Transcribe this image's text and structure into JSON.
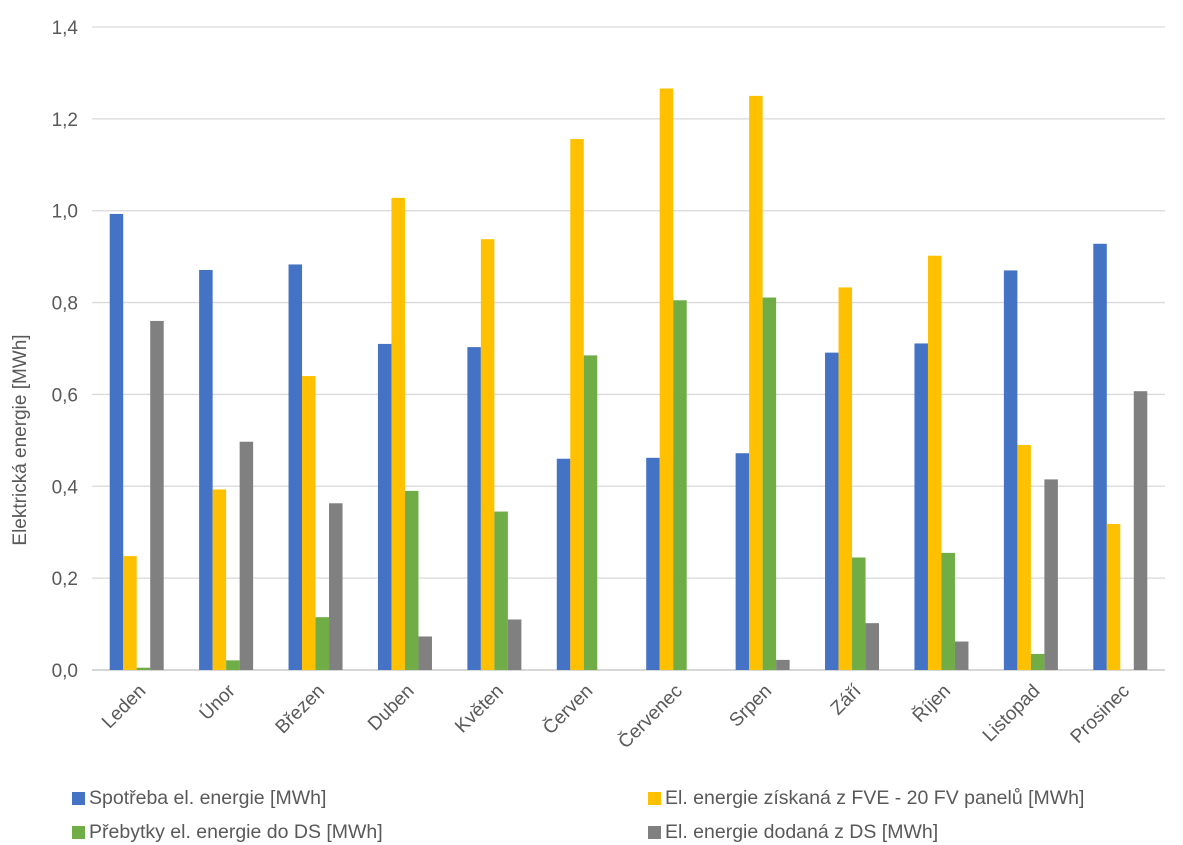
{
  "chart_data": {
    "type": "bar",
    "title": "",
    "xlabel": "",
    "ylabel": "Elektrická energie  [MWh]",
    "ylim": [
      0,
      1.4
    ],
    "yticks": [
      "0,0",
      "0,2",
      "0,4",
      "0,6",
      "0,8",
      "1,0",
      "1,2",
      "1,4"
    ],
    "grid": true,
    "legend_position": "bottom",
    "categories": [
      "Leden",
      "Únor",
      "Březen",
      "Duben",
      "Květen",
      "Červen",
      "Červenec",
      "Srpen",
      "Září",
      "Říjen",
      "Listopad",
      "Prosinec"
    ],
    "series": [
      {
        "name": "Spotřeba el. energie [MWh]",
        "color": "#4472C4",
        "values": [
          0.993,
          0.871,
          0.883,
          0.71,
          0.703,
          0.46,
          0.462,
          0.472,
          0.691,
          0.711,
          0.87,
          0.928
        ]
      },
      {
        "name": "El. energie získaná z FVE - 20 FV panelů [MWh]",
        "color": "#FFC000",
        "values": [
          0.248,
          0.393,
          0.64,
          1.028,
          0.938,
          1.156,
          1.266,
          1.25,
          0.833,
          0.902,
          0.49,
          0.318
        ]
      },
      {
        "name": "Přebytky el. energie do DS [MWh]",
        "color": "#70AD47",
        "values": [
          0.005,
          0.021,
          0.115,
          0.39,
          0.345,
          0.685,
          0.805,
          0.811,
          0.245,
          0.255,
          0.035,
          0.0
        ]
      },
      {
        "name": "El. energie dodaná z DS [MWh]",
        "color": "#808080",
        "values": [
          0.76,
          0.497,
          0.363,
          0.073,
          0.11,
          0.0,
          0.0,
          0.022,
          0.102,
          0.062,
          0.415,
          0.607
        ]
      }
    ]
  }
}
